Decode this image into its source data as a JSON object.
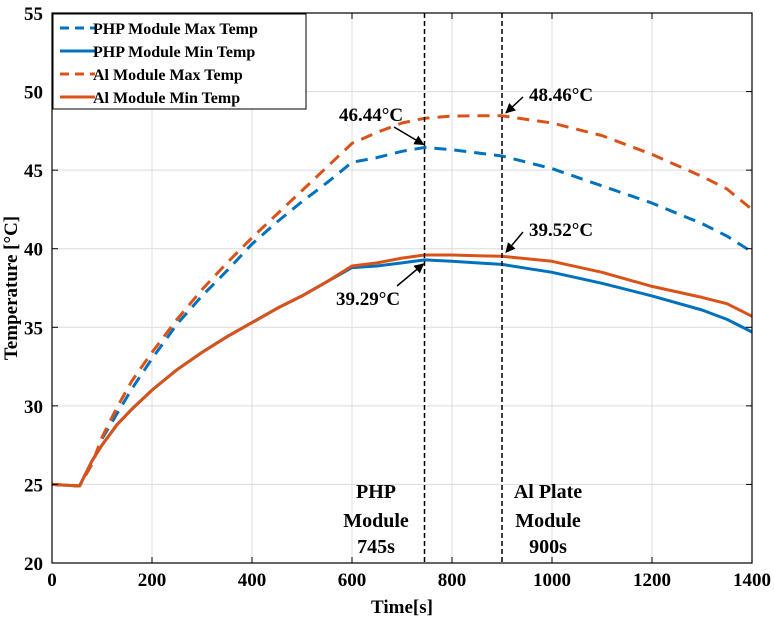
{
  "chart_data": {
    "type": "line",
    "title": "",
    "xlabel": "Time[s]",
    "ylabel": "Temperature  [°C]",
    "xlim": [
      0,
      1400
    ],
    "ylim": [
      20,
      55
    ],
    "xticks": [
      0,
      200,
      400,
      600,
      800,
      1000,
      1200,
      1400
    ],
    "yticks": [
      20,
      25,
      30,
      35,
      40,
      45,
      50,
      55
    ],
    "grid": true,
    "legend_position": "top-left",
    "colors": {
      "blue": "#0072BD",
      "orange": "#D95319"
    },
    "series": [
      {
        "name": "PHP Module Max Temp",
        "color": "#0072BD",
        "dash": true,
        "x": [
          0,
          55,
          80,
          100,
          130,
          160,
          200,
          250,
          300,
          350,
          400,
          450,
          500,
          550,
          600,
          650,
          700,
          745,
          800,
          850,
          900,
          1000,
          1100,
          1200,
          1300,
          1350,
          1400
        ],
        "y": [
          25,
          24.9,
          26.3,
          27.9,
          29.5,
          31.1,
          33.0,
          35.2,
          37.0,
          38.6,
          40.3,
          41.7,
          43.0,
          44.2,
          45.5,
          45.8,
          46.2,
          46.44,
          46.3,
          46.1,
          45.9,
          45.1,
          44.0,
          42.9,
          41.6,
          40.8,
          39.8
        ]
      },
      {
        "name": "PHP Module Min Temp",
        "color": "#0072BD",
        "dash": false,
        "x": [
          0,
          55,
          80,
          100,
          130,
          160,
          200,
          250,
          300,
          350,
          400,
          450,
          500,
          550,
          600,
          650,
          700,
          745,
          800,
          850,
          900,
          1000,
          1100,
          1200,
          1300,
          1350,
          1400
        ],
        "y": [
          25,
          24.9,
          26.5,
          27.5,
          28.8,
          29.8,
          31.0,
          32.3,
          33.4,
          34.4,
          35.3,
          36.2,
          37.0,
          37.9,
          38.8,
          38.9,
          39.1,
          39.29,
          39.2,
          39.1,
          39.0,
          38.5,
          37.8,
          37.0,
          36.1,
          35.5,
          34.7
        ]
      },
      {
        "name": "Al Module Max Temp",
        "color": "#D95319",
        "dash": true,
        "x": [
          0,
          55,
          80,
          100,
          130,
          160,
          200,
          250,
          300,
          350,
          400,
          450,
          500,
          550,
          600,
          650,
          700,
          745,
          800,
          850,
          900,
          1000,
          1100,
          1200,
          1300,
          1350,
          1400
        ],
        "y": [
          25,
          24.9,
          26.3,
          28.0,
          29.9,
          31.6,
          33.4,
          35.5,
          37.4,
          39.1,
          40.7,
          42.2,
          43.7,
          45.2,
          46.7,
          47.4,
          48.0,
          48.3,
          48.44,
          48.46,
          48.46,
          48.0,
          47.2,
          46.0,
          44.6,
          43.8,
          42.5
        ]
      },
      {
        "name": "Al Module Min Temp",
        "color": "#D95319",
        "dash": false,
        "x": [
          0,
          55,
          80,
          100,
          130,
          160,
          200,
          250,
          300,
          350,
          400,
          450,
          500,
          550,
          600,
          650,
          700,
          745,
          800,
          850,
          900,
          1000,
          1100,
          1200,
          1300,
          1350,
          1400
        ],
        "y": [
          25,
          24.9,
          26.5,
          27.5,
          28.8,
          29.8,
          31.0,
          32.3,
          33.4,
          34.4,
          35.3,
          36.2,
          37.0,
          37.9,
          38.9,
          39.1,
          39.4,
          39.6,
          39.6,
          39.55,
          39.52,
          39.2,
          38.5,
          37.6,
          36.9,
          36.5,
          35.7
        ]
      }
    ],
    "vlines": [
      {
        "x": 745,
        "label": [
          "PHP",
          "Module",
          "745s"
        ]
      },
      {
        "x": 900,
        "label": [
          "Al Plate",
          "Module",
          "900s"
        ]
      }
    ],
    "annotations": [
      {
        "text": "46.44°C",
        "x": 745,
        "y": 46.44
      },
      {
        "text": "48.46°C",
        "x": 900,
        "y": 48.46
      },
      {
        "text": "39.52°C",
        "x": 900,
        "y": 39.52
      },
      {
        "text": "39.29°C",
        "x": 745,
        "y": 39.29
      }
    ]
  }
}
